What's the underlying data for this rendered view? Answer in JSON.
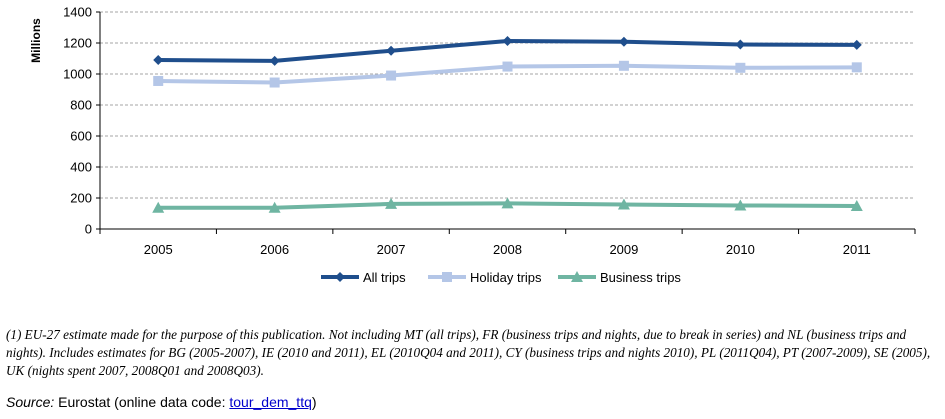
{
  "chart_data": {
    "type": "line",
    "ylabel": "Millions",
    "ylim": [
      0,
      1400
    ],
    "yticks": [
      0,
      200,
      400,
      600,
      800,
      1000,
      1200,
      1400
    ],
    "categories": [
      "2005",
      "2006",
      "2007",
      "2008",
      "2009",
      "2010",
      "2011"
    ],
    "grid": true,
    "legend_position": "bottom",
    "series": [
      {
        "name": "All trips",
        "color": "#1f4e8c",
        "marker": "diamond",
        "values": [
          1090,
          1085,
          1150,
          1213,
          1208,
          1190,
          1188
        ]
      },
      {
        "name": "Holiday trips",
        "color": "#b4c6e7",
        "marker": "square",
        "values": [
          955,
          945,
          990,
          1048,
          1053,
          1040,
          1043
        ]
      },
      {
        "name": "Business trips",
        "color": "#6fb5a2",
        "marker": "triangle",
        "values": [
          137,
          137,
          162,
          165,
          158,
          152,
          148
        ]
      }
    ]
  },
  "footnote": "(1) EU-27 estimate made for the purpose of this publication.  Not including MT (all trips), FR (business trips and nights, due to break in series) and NL (business trips and nights).  Includes estimates for BG (2005-2007), IE (2010 and 2011), EL (2010Q04 and 2011), CY (business trips and nights 2010), PL (2011Q04), PT (2007-2009), SE (2005), UK (nights spent 2007, 2008Q01 and 2008Q03).",
  "source": {
    "label": "Source:",
    "text": "Eurostat (online data code: ",
    "link": "tour_dem_ttq",
    "close": ")"
  }
}
